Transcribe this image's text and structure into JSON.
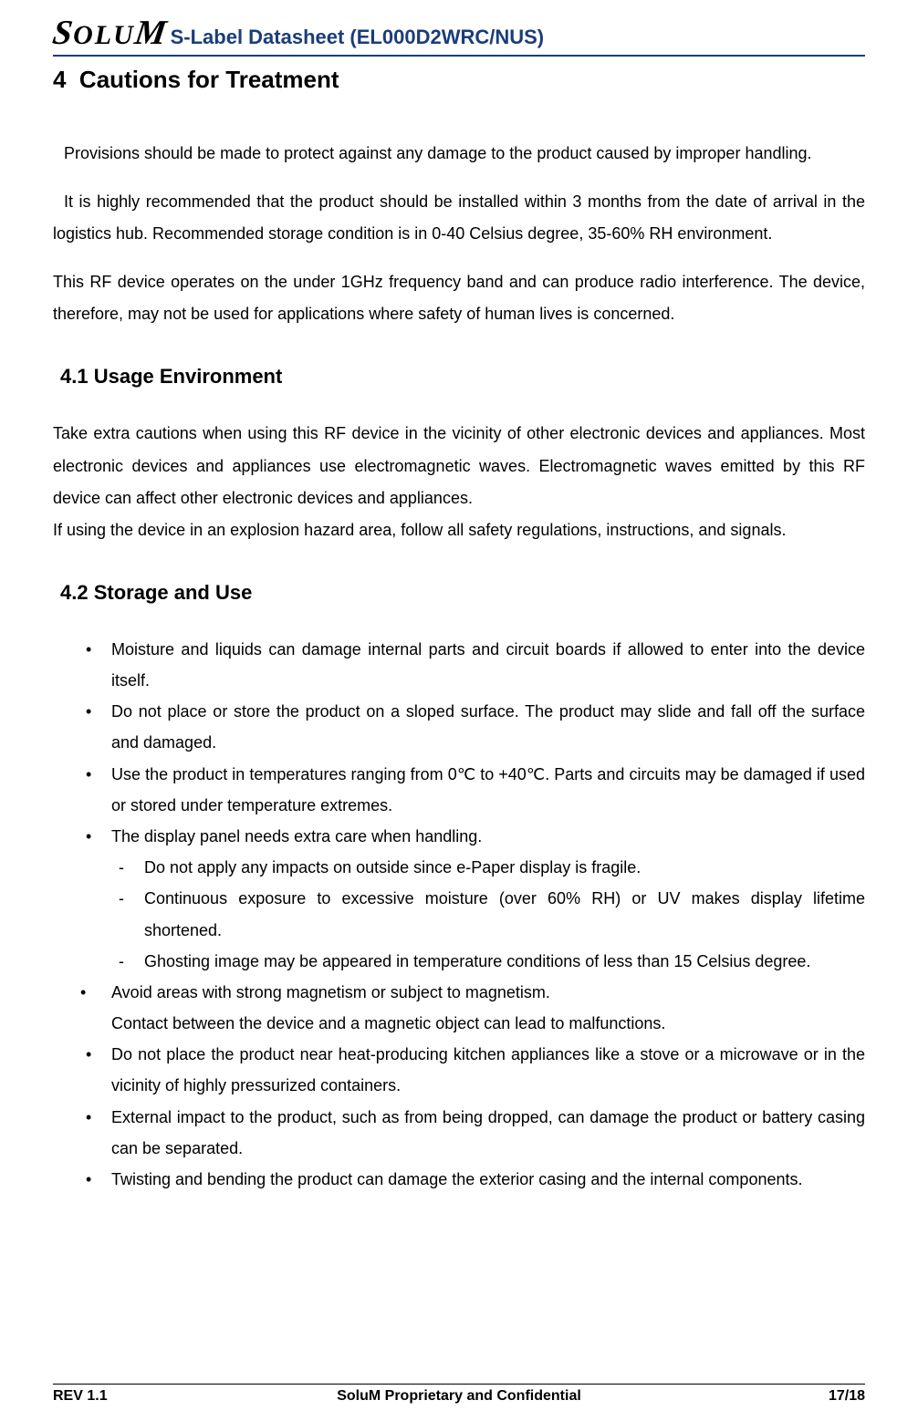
{
  "header": {
    "logo_text": "SOLUM",
    "title": "S-Label Datasheet (EL000D2WRC/NUS)"
  },
  "section": {
    "number": "4",
    "title": "Cautions for Treatment"
  },
  "intro": {
    "p1": "Provisions should be made to protect against any damage to the product caused by improper handling.",
    "p2": "It is highly recommended that the product should be installed within 3 months from the date of arrival in the logistics hub. Recommended storage condition is in 0-40 Celsius degree, 35-60% RH environment.",
    "p3": "This RF device operates on the under 1GHz frequency band and can produce radio interference. The device, therefore, may not be used for applications where safety of human lives is concerned."
  },
  "sub1": {
    "number": "4.1",
    "title": "Usage Environment",
    "p1": "Take extra cautions when using this RF device in the vicinity of other electronic devices and appliances. Most electronic devices and appliances use electromagnetic waves. Electromagnetic waves emitted by this RF device can affect other electronic devices and appliances.",
    "p2": "If using the device in an explosion hazard area, follow all safety regulations, instructions, and signals."
  },
  "sub2": {
    "number": "4.2",
    "title": "Storage and Use",
    "bullets": [
      "Moisture and liquids can damage internal parts and circuit boards if allowed to enter into the device itself.",
      "Do not place or store the product on a sloped surface. The product may slide and fall off the surface and damaged.",
      "Use the product in temperatures ranging from 0℃ to +40℃. Parts and circuits may be damaged if used or stored under temperature extremes.",
      "The display panel needs extra care when handling.",
      "Avoid areas with strong magnetism or subject to magnetism.",
      "Do not place the product near heat-producing kitchen appliances like a stove or a microwave or in the vicinity of highly pressurized containers.",
      "External impact to the product, such as from being dropped, can damage the product or battery casing can be separated.",
      "Twisting and bending the product can damage the exterior casing and the internal components."
    ],
    "sub_dash": [
      "Do not apply any impacts on outside since e-Paper display is fragile.",
      "Continuous exposure to excessive moisture (over 60% RH) or UV makes display lifetime shortened.",
      "Ghosting image may be appeared in temperature conditions of less than 15 Celsius degree."
    ],
    "bullet5_cont": "Contact between the device and a magnetic object can lead to malfunctions."
  },
  "footer": {
    "left": "REV 1.1",
    "center": "SoluM Proprietary and Confidential",
    "right": "17/18"
  },
  "colors": {
    "header_blue": "#1a3d7a",
    "text_black": "#000000",
    "background": "#ffffff"
  }
}
